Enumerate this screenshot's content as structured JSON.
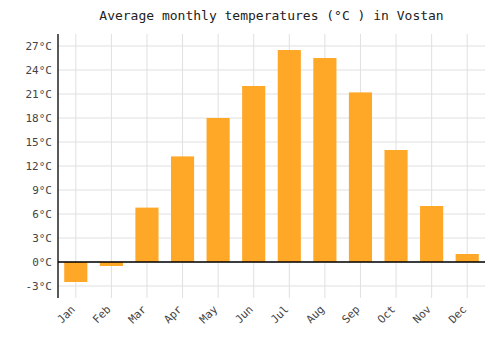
{
  "chart_data": {
    "type": "bar",
    "title": "Average monthly temperatures (°C ) in Vostan",
    "categories": [
      "Jan",
      "Feb",
      "Mar",
      "Apr",
      "May",
      "Jun",
      "Jul",
      "Aug",
      "Sep",
      "Oct",
      "Nov",
      "Dec"
    ],
    "values": [
      -2.5,
      -0.5,
      6.8,
      13.2,
      18.0,
      22.0,
      26.5,
      25.5,
      21.2,
      14.0,
      7.0,
      1.0
    ],
    "color": "#FFA726",
    "ylim": [
      -4.5,
      28.5
    ],
    "yticks": [
      {
        "value": -3,
        "label": "-3°C"
      },
      {
        "value": 0,
        "label": "0°C"
      },
      {
        "value": 3,
        "label": "3°C"
      },
      {
        "value": 6,
        "label": "6°C"
      },
      {
        "value": 9,
        "label": "9°C"
      },
      {
        "value": 12,
        "label": "12°C"
      },
      {
        "value": 15,
        "label": "15°C"
      },
      {
        "value": 18,
        "label": "18°C"
      },
      {
        "value": 21,
        "label": "21°C"
      },
      {
        "value": 24,
        "label": "24°C"
      },
      {
        "value": 27,
        "label": "27°C"
      }
    ],
    "grid": true
  }
}
